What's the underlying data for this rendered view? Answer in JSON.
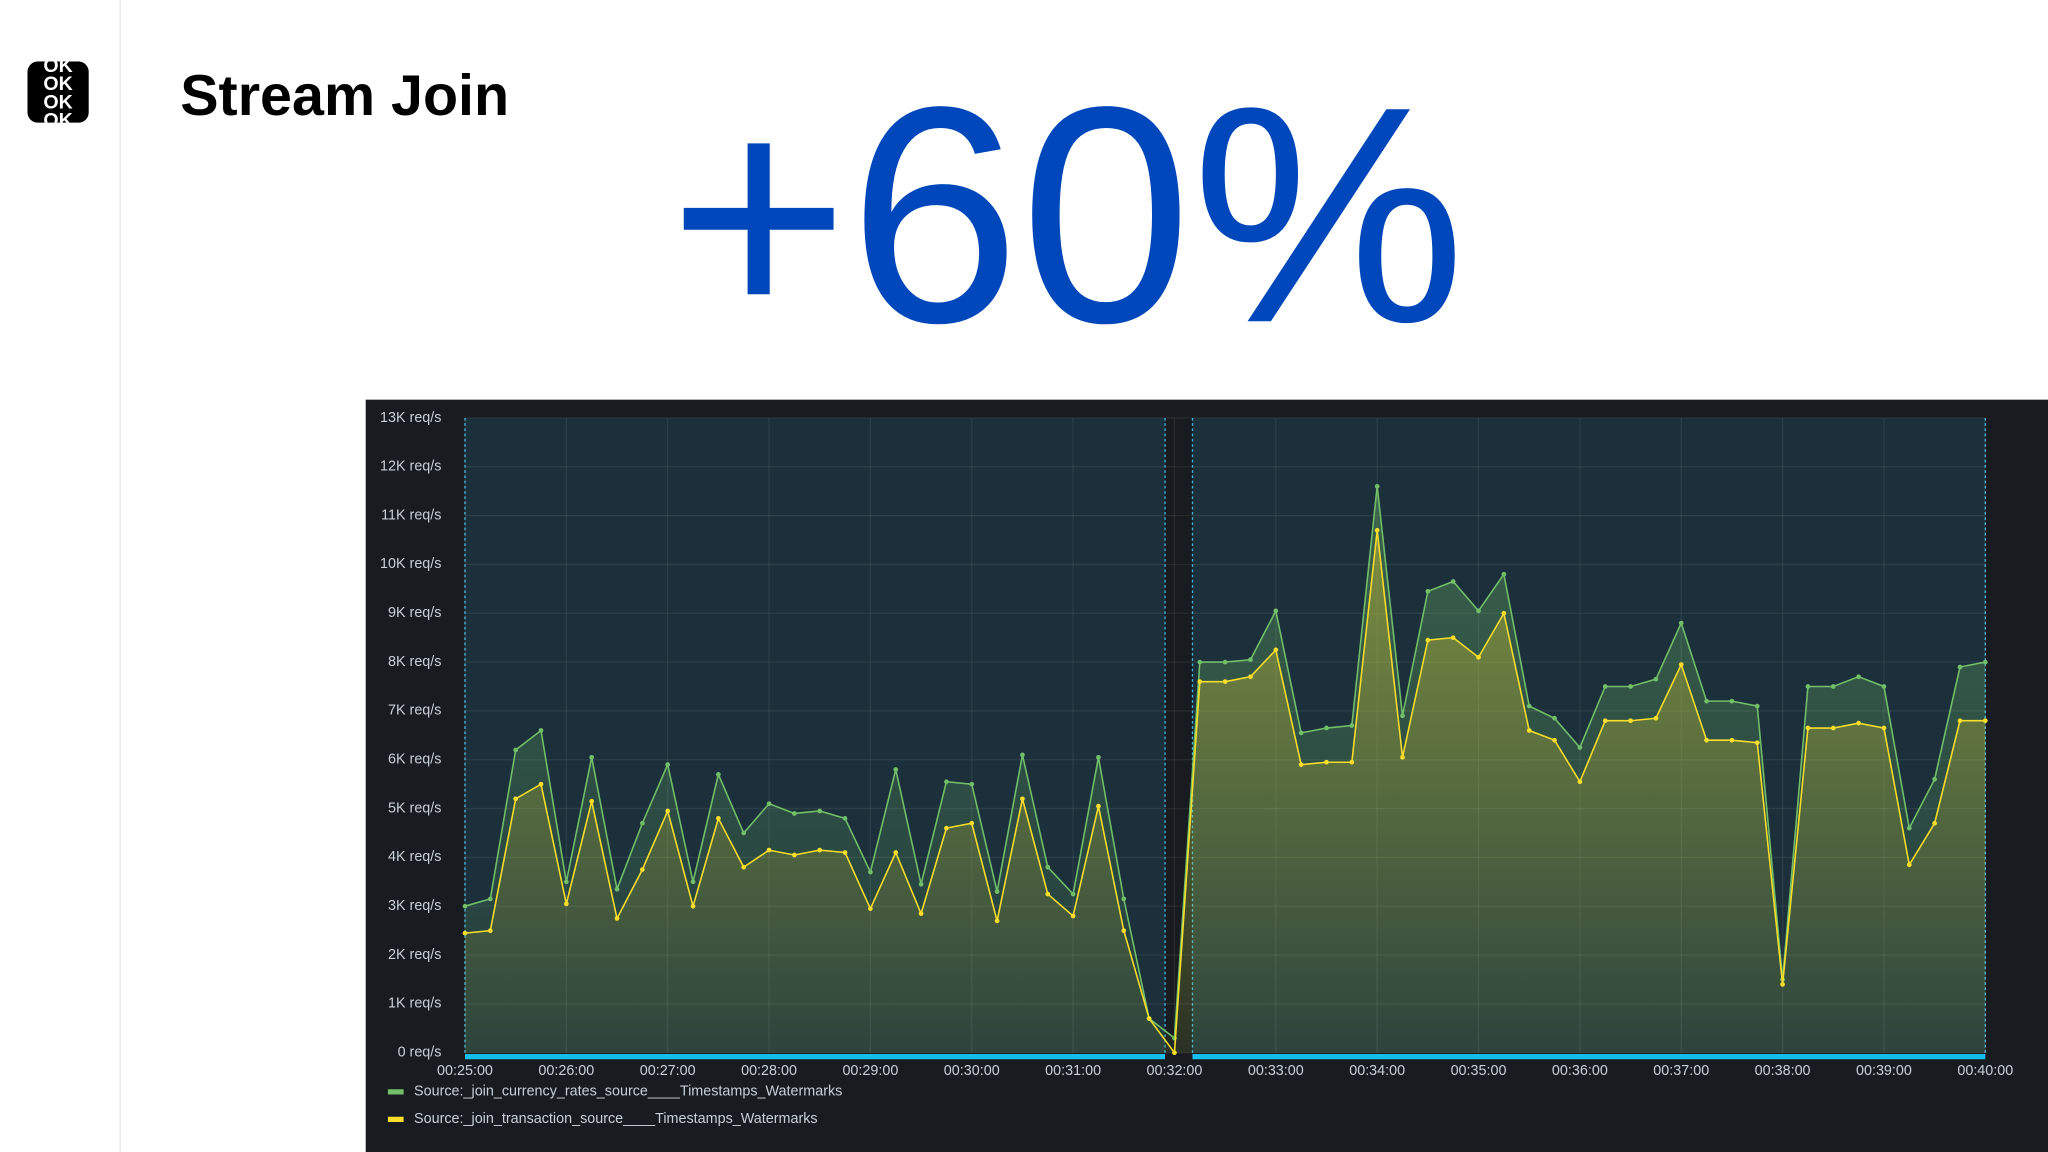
{
  "logo": "OK",
  "title": "Stream Join",
  "headline": "+60%",
  "chart_data": {
    "type": "area",
    "x": [
      "00:25:00",
      "00:25:15",
      "00:25:30",
      "00:25:45",
      "00:26:00",
      "00:26:15",
      "00:26:30",
      "00:26:45",
      "00:27:00",
      "00:27:15",
      "00:27:30",
      "00:27:45",
      "00:28:00",
      "00:28:15",
      "00:28:30",
      "00:28:45",
      "00:29:00",
      "00:29:15",
      "00:29:30",
      "00:29:45",
      "00:30:00",
      "00:30:15",
      "00:30:30",
      "00:30:45",
      "00:31:00",
      "00:31:15",
      "00:31:30",
      "00:31:45",
      "00:32:00",
      "00:32:15",
      "00:32:30",
      "00:32:45",
      "00:33:00",
      "00:33:15",
      "00:33:30",
      "00:33:45",
      "00:34:00",
      "00:34:15",
      "00:34:30",
      "00:34:45",
      "00:35:00",
      "00:35:15",
      "00:35:30",
      "00:35:45",
      "00:36:00",
      "00:36:15",
      "00:36:30",
      "00:36:45",
      "00:37:00",
      "00:37:15",
      "00:37:30",
      "00:37:45",
      "00:38:00",
      "00:38:15",
      "00:38:30",
      "00:38:45",
      "00:39:00",
      "00:39:15",
      "00:39:30",
      "00:39:45",
      "00:40:00"
    ],
    "xlim": [
      "00:25:00",
      "00:40:00"
    ],
    "xticks": [
      "00:25:00",
      "00:26:00",
      "00:27:00",
      "00:28:00",
      "00:29:00",
      "00:30:00",
      "00:31:00",
      "00:32:00",
      "00:33:00",
      "00:34:00",
      "00:35:00",
      "00:36:00",
      "00:37:00",
      "00:38:00",
      "00:39:00",
      "00:40:00"
    ],
    "ylim": [
      0,
      13000
    ],
    "yticks": [
      {
        "value": 0,
        "label": "0 req/s"
      },
      {
        "value": 1000,
        "label": "1K req/s"
      },
      {
        "value": 2000,
        "label": "2K req/s"
      },
      {
        "value": 3000,
        "label": "3K req/s"
      },
      {
        "value": 4000,
        "label": "4K req/s"
      },
      {
        "value": 5000,
        "label": "5K req/s"
      },
      {
        "value": 6000,
        "label": "6K req/s"
      },
      {
        "value": 7000,
        "label": "7K req/s"
      },
      {
        "value": 8000,
        "label": "8K req/s"
      },
      {
        "value": 9000,
        "label": "9K req/s"
      },
      {
        "value": 10000,
        "label": "10K req/s"
      },
      {
        "value": 11000,
        "label": "11K req/s"
      },
      {
        "value": 12000,
        "label": "12K req/s"
      },
      {
        "value": 13000,
        "label": "13K req/s"
      }
    ],
    "grid": true,
    "legend": "bottom-left",
    "series": [
      {
        "name": "Source:_join_currency_rates_source____Timestamps_Watermarks",
        "color": "#73bf69",
        "values": [
          3000,
          3150,
          6200,
          6600,
          3500,
          6050,
          3350,
          4700,
          5900,
          3500,
          5700,
          4500,
          5100,
          4900,
          4950,
          4800,
          3700,
          5800,
          3450,
          5550,
          5500,
          3300,
          6100,
          3800,
          3250,
          6050,
          3150,
          700,
          300,
          8000,
          8000,
          8050,
          9050,
          6550,
          6650,
          6700,
          11600,
          6900,
          9450,
          9650,
          9050,
          9800,
          7100,
          6850,
          6250,
          7500,
          7500,
          7650,
          8800,
          7200,
          7200,
          7100,
          1500,
          7500,
          7500,
          7700,
          7500,
          4600,
          5600,
          7900,
          8000
        ]
      },
      {
        "name": "Source:_join_transaction_source____Timestamps_Watermarks",
        "color": "#fade2a",
        "values": [
          2450,
          2500,
          5200,
          5500,
          3050,
          5150,
          2750,
          3750,
          4950,
          3000,
          4800,
          3800,
          4150,
          4050,
          4150,
          4100,
          2950,
          4100,
          2850,
          4600,
          4700,
          2700,
          5200,
          3250,
          2800,
          5050,
          2500,
          700,
          0,
          7600,
          7600,
          7700,
          8250,
          5900,
          5950,
          5950,
          10700,
          6050,
          8450,
          8500,
          8100,
          9000,
          6600,
          6400,
          5550,
          6800,
          6800,
          6850,
          7950,
          6400,
          6400,
          6350,
          1400,
          6650,
          6650,
          6750,
          6650,
          3850,
          4700,
          6800,
          6800
        ]
      }
    ]
  }
}
